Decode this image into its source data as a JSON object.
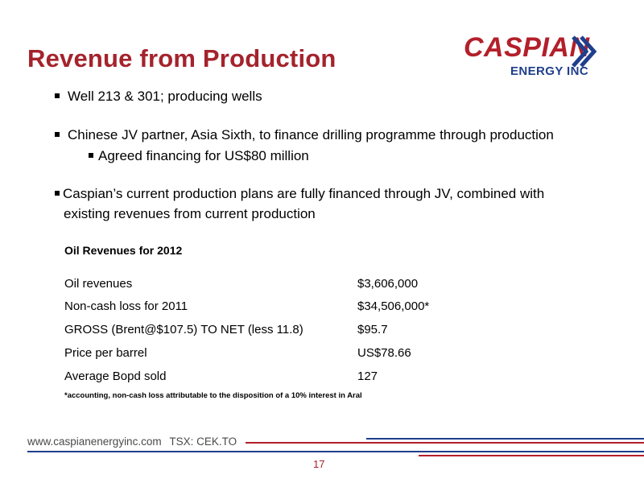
{
  "slide": {
    "title": "Revenue from Production",
    "logo": {
      "name": "CASPIAN",
      "sub": "ENERGY INC"
    },
    "bullets": {
      "b1": "Well 213 & 301; producing wells",
      "b2": "Chinese JV partner, Asia Sixth, to finance drilling programme through production",
      "b2_sub": "Agreed financing for US$80 million",
      "b3_line1": "Caspian’s current production plans are fully financed through JV, combined with",
      "b3_line2": "existing revenues from current production"
    },
    "table": {
      "title": "Oil Revenues for 2012",
      "rows": [
        {
          "label": "Oil revenues",
          "value": "$3,606,000"
        },
        {
          "label": "Non-cash loss for 2011",
          "value": "$34,506,000*"
        },
        {
          "label": "GROSS (Brent@$107.5) TO NET (less 11.8)",
          "value": "$95.7"
        },
        {
          "label": "Price per barrel",
          "value": "US$78.66"
        },
        {
          "label": "Average Bopd sold",
          "value": "127"
        }
      ],
      "footnote": "*accounting, non-cash loss attributable to the disposition of a 10% interest in Aral"
    },
    "footer": {
      "url": "www.caspianenergyinc.com",
      "ticker": "TSX: CEK.TO"
    },
    "page_number": "17"
  },
  "colors": {
    "title": "#a4232c",
    "brand_red": "#b31f2a",
    "brand_blue": "#1f3f8c",
    "footer_line_red": "#b31f2a",
    "footer_line_blue": "#1f3f8c"
  }
}
